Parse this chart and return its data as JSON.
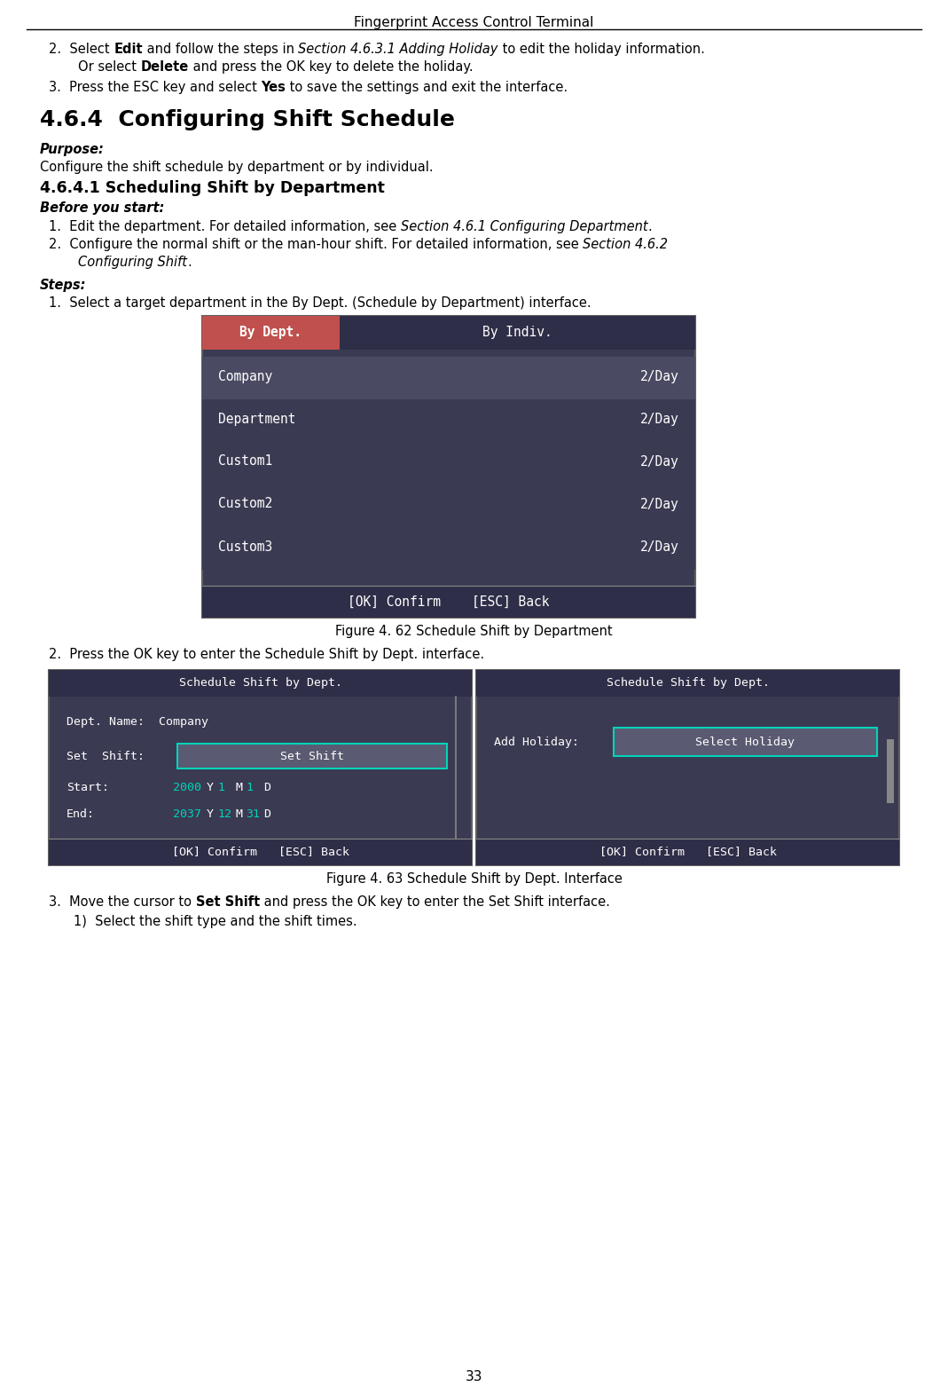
{
  "title": "Fingerprint Access Control Terminal",
  "page_number": "33",
  "bg_color": "#ffffff",
  "figsize": [
    10.69,
    15.72
  ],
  "dpi": 100,
  "screen_bg": "#3a3a52",
  "screen_selected_bg": "#c0504d",
  "screen_row_highlight": "#4a4a62",
  "screen_footer_bg": "#2e2e48",
  "screen_cyan": "#00d4b8",
  "fig1_rows": [
    "Company",
    "Department",
    "Custom1",
    "Custom2",
    "Custom3"
  ],
  "fig1_values": [
    "2/Day",
    "2/Day",
    "2/Day",
    "2/Day",
    "2/Day"
  ],
  "fig1_caption": "Figure 4. 62 Schedule Shift by Department",
  "fig2_caption": "Figure 4. 63 Schedule Shift by Dept. Interface"
}
